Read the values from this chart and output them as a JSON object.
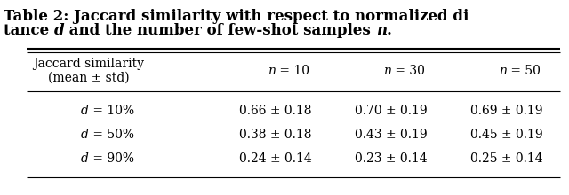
{
  "title_line1": "Table 2: Jaccard similarity with respect to normalized di",
  "title_line2_parts": [
    {
      "text": "tance ",
      "style": "bold"
    },
    {
      "text": "d",
      "style": "bold_italic"
    },
    {
      "text": " and the number of few-shot samples ",
      "style": "bold"
    },
    {
      "text": "n",
      "style": "bold_italic"
    },
    {
      "text": ".",
      "style": "bold"
    }
  ],
  "col_headers": [
    "Jaccard similarity\n(mean ± std)",
    "n = 10",
    "n = 30",
    "n = 50"
  ],
  "row_labels": [
    "d = 10%",
    "d = 50%",
    "d = 90%"
  ],
  "data": [
    [
      "0.66 ± 0.18",
      "0.70 ± 0.19",
      "0.69 ± 0.19"
    ],
    [
      "0.38 ± 0.18",
      "0.43 ± 0.19",
      "0.45 ± 0.19"
    ],
    [
      "0.24 ± 0.14",
      "0.23 ± 0.14",
      "0.25 ± 0.14"
    ]
  ],
  "bg_color": "#ffffff",
  "text_color": "#000000",
  "title_fontsize": 12,
  "table_fontsize": 10
}
